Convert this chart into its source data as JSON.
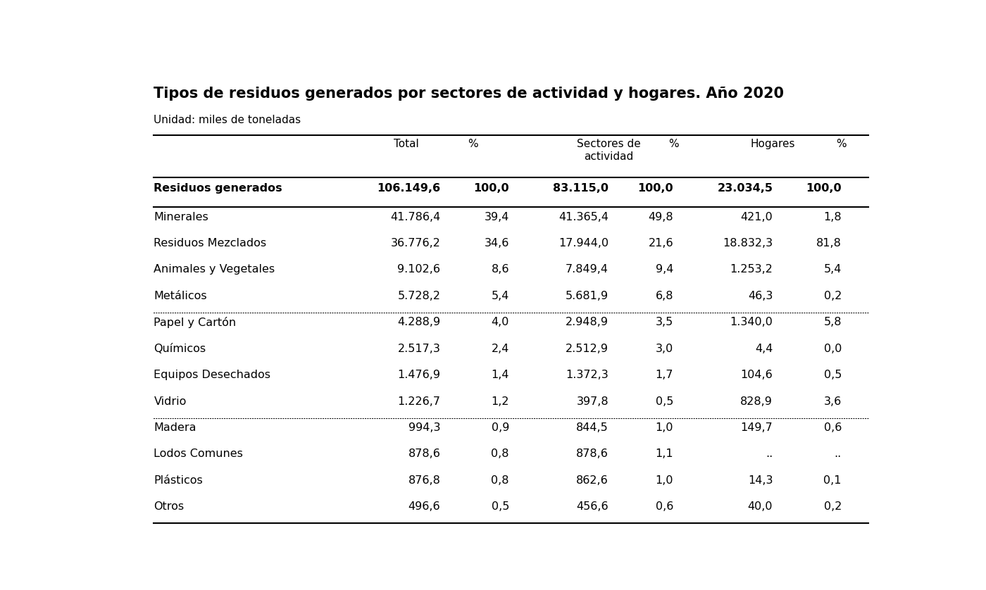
{
  "title": "Tipos de residuos generados por sectores de actividad y hogares. Año 2020",
  "subtitle": "Unidad: miles de toneladas",
  "col_headers": [
    "Total",
    "%",
    "Sectores de\nactividad",
    "%",
    "Hogares",
    "%"
  ],
  "header_row": [
    "Residuos generados",
    "106.149,6",
    "100,0",
    "83.115,0",
    "100,0",
    "23.034,5",
    "100,0"
  ],
  "rows": [
    [
      "Minerales",
      "41.786,4",
      "39,4",
      "41.365,4",
      "49,8",
      "421,0",
      "1,8"
    ],
    [
      "Residuos Mezclados",
      "36.776,2",
      "34,6",
      "17.944,0",
      "21,6",
      "18.832,3",
      "81,8"
    ],
    [
      "Animales y Vegetales",
      "9.102,6",
      "8,6",
      "7.849,4",
      "9,4",
      "1.253,2",
      "5,4"
    ],
    [
      "Metálicos",
      "5.728,2",
      "5,4",
      "5.681,9",
      "6,8",
      "46,3",
      "0,2"
    ],
    [
      "Papel y Cartón",
      "4.288,9",
      "4,0",
      "2.948,9",
      "3,5",
      "1.340,0",
      "5,8"
    ],
    [
      "Químicos",
      "2.517,3",
      "2,4",
      "2.512,9",
      "3,0",
      "4,4",
      "0,0"
    ],
    [
      "Equipos Desechados",
      "1.476,9",
      "1,4",
      "1.372,3",
      "1,7",
      "104,6",
      "0,5"
    ],
    [
      "Vidrio",
      "1.226,7",
      "1,2",
      "397,8",
      "0,5",
      "828,9",
      "3,6"
    ],
    [
      "Madera",
      "994,3",
      "0,9",
      "844,5",
      "1,0",
      "149,7",
      "0,6"
    ],
    [
      "Lodos Comunes",
      "878,6",
      "0,8",
      "878,6",
      "1,1",
      "..",
      ".."
    ],
    [
      "Plásticos",
      "876,8",
      "0,8",
      "862,6",
      "1,0",
      "14,3",
      "0,1"
    ],
    [
      "Otros",
      "496,6",
      "0,5",
      "456,6",
      "0,6",
      "40,0",
      "0,2"
    ]
  ],
  "dotted_separators_after": [
    3,
    7
  ],
  "background_color": "#ffffff",
  "title_fontsize": 15,
  "subtitle_fontsize": 11,
  "header_fontsize": 11,
  "body_fontsize": 11.5
}
